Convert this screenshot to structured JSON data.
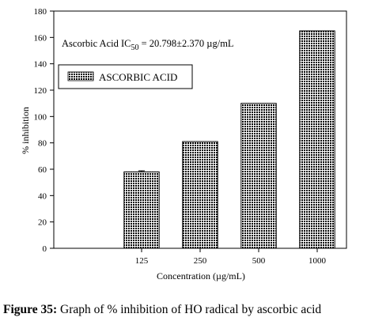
{
  "chart_data": {
    "type": "bar",
    "categories": [
      "125",
      "250",
      "500",
      "1000"
    ],
    "values": [
      58,
      81,
      110,
      165
    ],
    "error": [
      0.8,
      0,
      0,
      0
    ],
    "xlabel": "Concentration (µg/mL)",
    "ylabel": "% inhibition",
    "ylim": [
      0,
      180
    ],
    "yticks": [
      0,
      20,
      40,
      60,
      80,
      100,
      120,
      140,
      160,
      180
    ],
    "legend": {
      "label": "ASCORBIC ACID",
      "position": "top-left"
    },
    "annotation": {
      "prefix": "Ascorbic Acid IC",
      "subscript": "50",
      "suffix": " = 20.798±2.370 µg/mL"
    },
    "bar_fill": "crosshatch",
    "colors": {
      "bar": "#000000",
      "background": "#ffffff"
    }
  },
  "caption": {
    "lead": "Figure 35:",
    "text": " Graph of % inhibition of HO radical by ascorbic acid"
  }
}
